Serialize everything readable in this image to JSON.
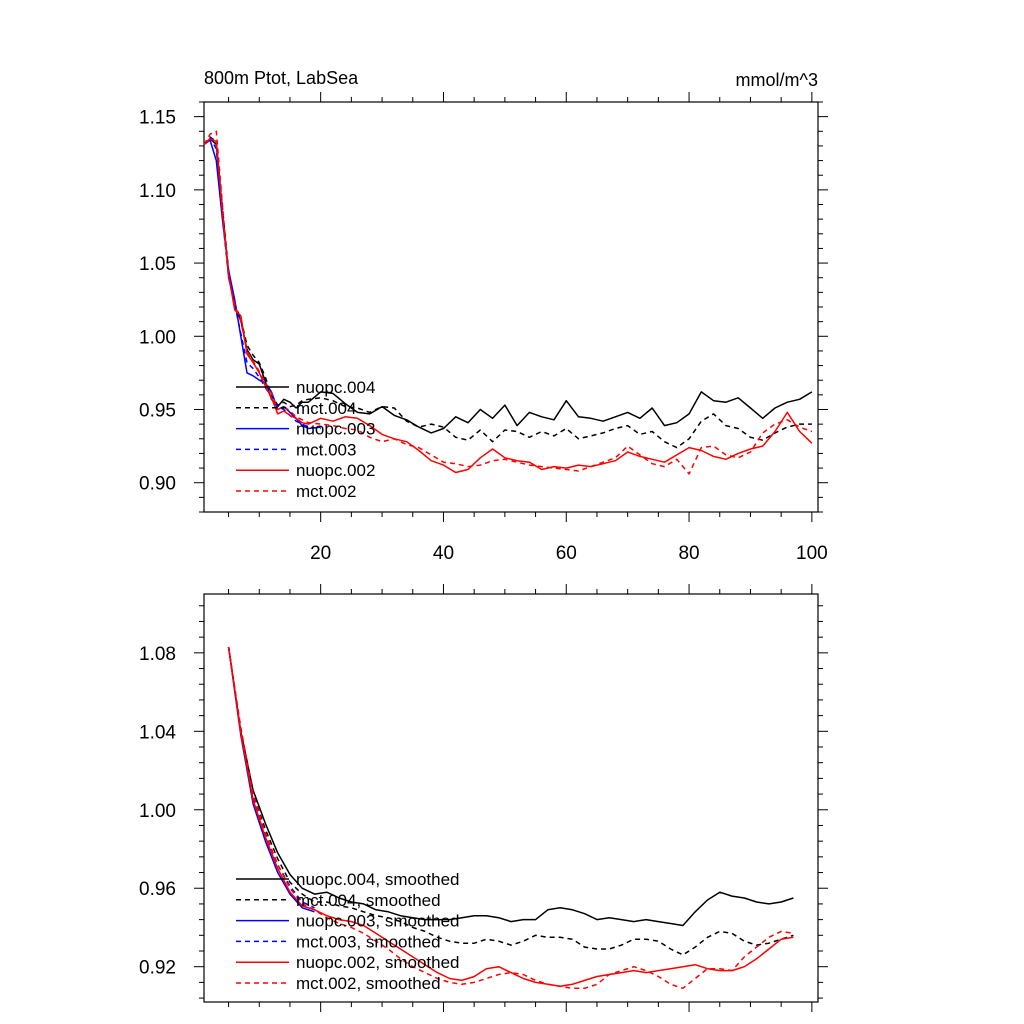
{
  "chart_data": [
    {
      "type": "line",
      "title": "800m Ptot, LabSea",
      "units": "mmol/m^3",
      "xlim": [
        1,
        101
      ],
      "ylim": [
        0.88,
        1.16
      ],
      "xticks": [
        20,
        40,
        60,
        80,
        100
      ],
      "xtick_labels": [
        "20",
        "40",
        "60",
        "80",
        "100"
      ],
      "yticks": [
        0.9,
        0.95,
        1.0,
        1.05,
        1.1,
        1.15
      ],
      "ytick_labels": [
        "0.90",
        "0.95",
        "1.00",
        "1.05",
        "1.10",
        "1.15"
      ],
      "legend_position": "lower-left",
      "series": [
        {
          "name": "nuopc.004",
          "color": "#000000",
          "dash": "solid",
          "x": [
            1,
            2,
            3,
            4,
            5,
            6,
            7,
            8,
            9,
            10,
            11,
            12,
            13,
            14,
            15,
            16,
            17,
            18,
            20,
            22,
            24,
            26,
            28,
            30,
            32,
            34,
            36,
            38,
            40,
            42,
            44,
            46,
            48,
            50,
            52,
            54,
            56,
            58,
            60,
            62,
            64,
            66,
            68,
            70,
            72,
            74,
            76,
            78,
            80,
            82,
            84,
            86,
            88,
            90,
            92,
            94,
            96,
            98,
            100
          ],
          "y": [
            1.131,
            1.135,
            1.131,
            1.085,
            1.043,
            1.02,
            1.011,
            0.991,
            0.984,
            0.981,
            0.969,
            0.957,
            0.952,
            0.957,
            0.955,
            0.951,
            0.955,
            0.955,
            0.962,
            0.961,
            0.954,
            0.948,
            0.947,
            0.952,
            0.946,
            0.943,
            0.938,
            0.934,
            0.937,
            0.945,
            0.941,
            0.95,
            0.944,
            0.953,
            0.939,
            0.948,
            0.945,
            0.943,
            0.956,
            0.945,
            0.944,
            0.942,
            0.945,
            0.948,
            0.944,
            0.951,
            0.939,
            0.941,
            0.947,
            0.962,
            0.956,
            0.955,
            0.958,
            0.951,
            0.944,
            0.951,
            0.955,
            0.957,
            0.962
          ]
        },
        {
          "name": "mct.004",
          "color": "#000000",
          "dash": "dashed",
          "x": [
            1,
            2,
            3,
            4,
            5,
            6,
            7,
            8,
            9,
            10,
            11,
            12,
            13,
            14,
            15,
            16,
            17,
            18,
            20,
            22,
            24,
            26,
            28,
            30,
            32,
            34,
            36,
            38,
            40,
            42,
            44,
            46,
            48,
            50,
            52,
            54,
            56,
            58,
            60,
            62,
            64,
            66,
            68,
            70,
            72,
            74,
            76,
            78,
            80,
            82,
            84,
            86,
            88,
            90,
            92,
            94,
            96,
            98,
            100
          ],
          "y": [
            1.131,
            1.136,
            1.133,
            1.088,
            1.045,
            1.022,
            1.012,
            0.994,
            0.987,
            0.982,
            0.972,
            0.96,
            0.953,
            0.955,
            0.952,
            0.953,
            0.956,
            0.957,
            0.958,
            0.956,
            0.952,
            0.951,
            0.948,
            0.952,
            0.951,
            0.942,
            0.938,
            0.94,
            0.938,
            0.931,
            0.929,
            0.936,
            0.928,
            0.936,
            0.935,
            0.931,
            0.935,
            0.932,
            0.937,
            0.93,
            0.932,
            0.934,
            0.937,
            0.939,
            0.933,
            0.935,
            0.928,
            0.924,
            0.93,
            0.942,
            0.947,
            0.939,
            0.937,
            0.931,
            0.929,
            0.934,
            0.938,
            0.94,
            0.94
          ]
        },
        {
          "name": "nuopc.003",
          "color": "#0000ff",
          "dash": "solid",
          "x": [
            1,
            2,
            3,
            4,
            5,
            6,
            7,
            8,
            9,
            10,
            11,
            12,
            13,
            14,
            15,
            16,
            17,
            18,
            20
          ],
          "y": [
            1.131,
            1.134,
            1.12,
            1.08,
            1.045,
            1.025,
            1.0,
            0.975,
            0.973,
            0.97,
            0.968,
            0.962,
            0.95,
            0.952,
            0.948,
            0.944,
            0.939,
            0.937,
            0.938
          ]
        },
        {
          "name": "mct.003",
          "color": "#0000ff",
          "dash": "dashed",
          "x": [
            1,
            2,
            3,
            4,
            5,
            6,
            7,
            8,
            9,
            10,
            11,
            12,
            13,
            14,
            15,
            16,
            17,
            18,
            20
          ],
          "y": [
            1.131,
            1.136,
            1.128,
            1.082,
            1.04,
            1.022,
            1.002,
            0.982,
            0.978,
            0.972,
            0.965,
            0.958,
            0.952,
            0.95,
            0.946,
            0.942,
            0.94,
            0.938,
            0.937
          ]
        },
        {
          "name": "nuopc.002",
          "color": "#ff0000",
          "dash": "solid",
          "x": [
            1,
            2,
            3,
            4,
            5,
            6,
            7,
            8,
            9,
            10,
            11,
            12,
            13,
            14,
            15,
            16,
            17,
            18,
            20,
            22,
            24,
            26,
            28,
            30,
            32,
            34,
            36,
            38,
            40,
            42,
            44,
            46,
            48,
            50,
            52,
            54,
            56,
            58,
            60,
            62,
            64,
            66,
            68,
            70,
            72,
            74,
            76,
            78,
            80,
            82,
            84,
            86,
            88,
            90,
            92,
            94,
            96,
            98,
            100
          ],
          "y": [
            1.131,
            1.135,
            1.133,
            1.085,
            1.042,
            1.018,
            1.014,
            0.988,
            0.982,
            0.975,
            0.966,
            0.958,
            0.947,
            0.949,
            0.946,
            0.944,
            0.941,
            0.94,
            0.944,
            0.942,
            0.945,
            0.944,
            0.939,
            0.933,
            0.93,
            0.928,
            0.922,
            0.915,
            0.912,
            0.907,
            0.909,
            0.917,
            0.923,
            0.917,
            0.915,
            0.914,
            0.909,
            0.911,
            0.91,
            0.912,
            0.911,
            0.913,
            0.915,
            0.921,
            0.918,
            0.916,
            0.914,
            0.919,
            0.924,
            0.922,
            0.918,
            0.916,
            0.92,
            0.923,
            0.925,
            0.935,
            0.948,
            0.935,
            0.927
          ]
        },
        {
          "name": "mct.002",
          "color": "#ff0000",
          "dash": "dashed",
          "x": [
            1,
            2,
            3,
            4,
            5,
            6,
            7,
            8,
            9,
            10,
            11,
            12,
            13,
            14,
            15,
            16,
            17,
            18,
            20,
            22,
            24,
            26,
            28,
            30,
            32,
            34,
            36,
            38,
            40,
            42,
            44,
            46,
            48,
            50,
            52,
            54,
            56,
            58,
            60,
            62,
            64,
            66,
            68,
            70,
            72,
            74,
            76,
            78,
            80,
            82,
            84,
            86,
            88,
            90,
            92,
            94,
            96,
            98,
            100
          ],
          "y": [
            1.131,
            1.138,
            1.14,
            1.09,
            1.04,
            1.022,
            1.01,
            0.99,
            0.983,
            0.976,
            0.968,
            0.961,
            0.95,
            0.952,
            0.949,
            0.945,
            0.943,
            0.941,
            0.94,
            0.939,
            0.937,
            0.936,
            0.931,
            0.928,
            0.93,
            0.926,
            0.924,
            0.919,
            0.914,
            0.913,
            0.911,
            0.912,
            0.915,
            0.916,
            0.914,
            0.912,
            0.911,
            0.91,
            0.909,
            0.908,
            0.911,
            0.914,
            0.917,
            0.925,
            0.919,
            0.913,
            0.911,
            0.916,
            0.906,
            0.924,
            0.925,
            0.919,
            0.917,
            0.921,
            0.934,
            0.94,
            0.943,
            0.938,
            0.935
          ]
        }
      ]
    },
    {
      "type": "line",
      "title": "",
      "xlim": [
        1,
        101
      ],
      "ylim": [
        0.902,
        1.11
      ],
      "xticks": [
        20,
        40,
        60,
        80,
        100
      ],
      "xtick_labels": [],
      "yticks": [
        0.92,
        0.96,
        1.0,
        1.04,
        1.08
      ],
      "ytick_labels": [
        "0.92",
        "0.96",
        "1.00",
        "1.04",
        "1.08"
      ],
      "legend_position": "lower-left",
      "series": [
        {
          "name": "nuopc.004, smoothed",
          "color": "#000000",
          "dash": "solid",
          "x": [
            5,
            7,
            9,
            11,
            13,
            15,
            17,
            19,
            21,
            23,
            25,
            27,
            29,
            31,
            33,
            35,
            37,
            39,
            41,
            43,
            45,
            47,
            49,
            51,
            53,
            55,
            57,
            59,
            61,
            63,
            65,
            67,
            69,
            71,
            73,
            75,
            77,
            79,
            81,
            83,
            85,
            87,
            89,
            91,
            93,
            95,
            97
          ],
          "y": [
            1.083,
            1.04,
            1.01,
            0.993,
            0.978,
            0.967,
            0.96,
            0.957,
            0.958,
            0.955,
            0.953,
            0.952,
            0.949,
            0.948,
            0.946,
            0.945,
            0.944,
            0.944,
            0.944,
            0.945,
            0.946,
            0.946,
            0.945,
            0.943,
            0.944,
            0.944,
            0.949,
            0.95,
            0.949,
            0.947,
            0.944,
            0.945,
            0.944,
            0.943,
            0.944,
            0.943,
            0.942,
            0.941,
            0.948,
            0.954,
            0.958,
            0.956,
            0.955,
            0.953,
            0.952,
            0.953,
            0.955
          ]
        },
        {
          "name": "mct.004, smoothed",
          "color": "#000000",
          "dash": "dashed",
          "x": [
            5,
            7,
            9,
            11,
            13,
            15,
            17,
            19,
            21,
            23,
            25,
            27,
            29,
            31,
            33,
            35,
            37,
            39,
            41,
            43,
            45,
            47,
            49,
            51,
            53,
            55,
            57,
            59,
            61,
            63,
            65,
            67,
            69,
            71,
            73,
            75,
            77,
            79,
            81,
            83,
            85,
            87,
            89,
            91,
            93,
            95,
            97
          ],
          "y": [
            1.083,
            1.04,
            1.008,
            0.99,
            0.975,
            0.963,
            0.957,
            0.953,
            0.953,
            0.951,
            0.95,
            0.948,
            0.946,
            0.945,
            0.943,
            0.94,
            0.938,
            0.935,
            0.933,
            0.932,
            0.932,
            0.934,
            0.933,
            0.931,
            0.933,
            0.936,
            0.935,
            0.935,
            0.934,
            0.93,
            0.929,
            0.929,
            0.931,
            0.934,
            0.934,
            0.933,
            0.929,
            0.926,
            0.93,
            0.935,
            0.938,
            0.937,
            0.933,
            0.931,
            0.932,
            0.934,
            0.936
          ]
        },
        {
          "name": "nuopc.003, smoothed",
          "color": "#0000ff",
          "dash": "solid",
          "x": [
            5,
            7,
            9,
            11,
            13,
            15,
            17,
            19
          ],
          "y": [
            1.083,
            1.038,
            1.003,
            0.984,
            0.968,
            0.957,
            0.95,
            0.948
          ]
        },
        {
          "name": "mct.003, smoothed",
          "color": "#0000ff",
          "dash": "dashed",
          "x": [
            5,
            7,
            9,
            11,
            13,
            15,
            17,
            19
          ],
          "y": [
            1.083,
            1.04,
            1.006,
            0.987,
            0.972,
            0.961,
            0.953,
            0.95
          ]
        },
        {
          "name": "nuopc.002, smoothed",
          "color": "#ff0000",
          "dash": "solid",
          "x": [
            5,
            7,
            9,
            11,
            13,
            15,
            17,
            19,
            21,
            23,
            25,
            27,
            29,
            31,
            33,
            35,
            37,
            39,
            41,
            43,
            45,
            47,
            49,
            51,
            53,
            55,
            57,
            59,
            61,
            63,
            65,
            67,
            69,
            71,
            73,
            75,
            77,
            79,
            81,
            83,
            85,
            87,
            89,
            91,
            93,
            95,
            97
          ],
          "y": [
            1.083,
            1.039,
            1.005,
            0.986,
            0.97,
            0.958,
            0.951,
            0.949,
            0.946,
            0.944,
            0.943,
            0.941,
            0.937,
            0.933,
            0.929,
            0.925,
            0.921,
            0.917,
            0.914,
            0.913,
            0.915,
            0.919,
            0.92,
            0.917,
            0.914,
            0.912,
            0.911,
            0.91,
            0.911,
            0.913,
            0.915,
            0.916,
            0.917,
            0.918,
            0.917,
            0.918,
            0.919,
            0.92,
            0.921,
            0.919,
            0.918,
            0.918,
            0.92,
            0.924,
            0.929,
            0.934,
            0.935
          ]
        },
        {
          "name": "mct.002, smoothed",
          "color": "#ff0000",
          "dash": "dashed",
          "x": [
            5,
            7,
            9,
            11,
            13,
            15,
            17,
            19,
            21,
            23,
            25,
            27,
            29,
            31,
            33,
            35,
            37,
            39,
            41,
            43,
            45,
            47,
            49,
            51,
            53,
            55,
            57,
            59,
            61,
            63,
            65,
            67,
            69,
            71,
            73,
            75,
            77,
            79,
            81,
            83,
            85,
            87,
            89,
            91,
            93,
            95,
            97
          ],
          "y": [
            1.083,
            1.042,
            1.008,
            0.988,
            0.972,
            0.96,
            0.952,
            0.949,
            0.945,
            0.942,
            0.94,
            0.937,
            0.933,
            0.929,
            0.924,
            0.92,
            0.917,
            0.914,
            0.912,
            0.911,
            0.912,
            0.914,
            0.916,
            0.917,
            0.916,
            0.913,
            0.911,
            0.91,
            0.909,
            0.909,
            0.911,
            0.916,
            0.918,
            0.92,
            0.918,
            0.915,
            0.911,
            0.909,
            0.914,
            0.919,
            0.919,
            0.918,
            0.925,
            0.93,
            0.935,
            0.938,
            0.937
          ]
        }
      ]
    }
  ]
}
